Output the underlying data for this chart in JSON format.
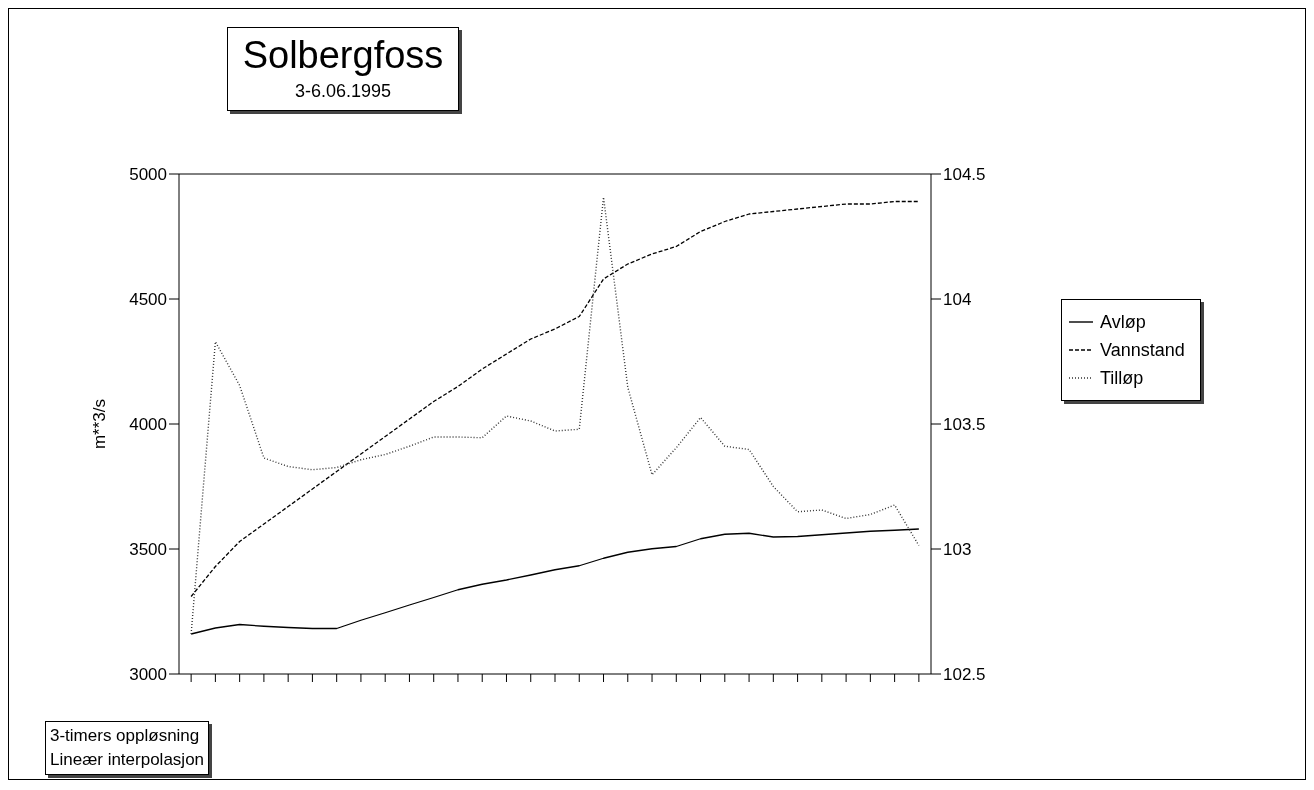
{
  "chart_data": {
    "type": "line",
    "title": "Solbergfoss",
    "subtitle": "3-6.06.1995",
    "ylabel": "m**3/s",
    "categories": [
      null,
      null,
      null,
      null,
      null,
      null,
      null,
      null,
      null,
      null,
      null,
      null,
      null,
      null,
      null,
      null,
      null,
      null,
      null,
      null,
      null,
      null,
      null,
      null,
      null,
      null,
      null,
      null,
      null,
      null,
      null
    ],
    "series": [
      {
        "name": "Avløp",
        "color": "#000000",
        "line_style": "solid",
        "values": [
          3160,
          3184,
          3198,
          3191,
          3186,
          3182,
          3182,
          3215,
          3245,
          3276,
          3306,
          3337,
          3359,
          3376,
          3396,
          3417,
          3433,
          3463,
          3487,
          3501,
          3510,
          3541,
          3559,
          3563,
          3548,
          3550,
          3557,
          3564,
          3571,
          3575,
          3580
        ]
      },
      {
        "name": "Vannstand",
        "color": "#000000",
        "line_style": "dashed",
        "axis": "y2",
        "values": [
          102.81,
          102.93,
          103.03,
          103.1,
          103.17,
          103.24,
          103.31,
          103.38,
          103.45,
          103.52,
          103.59,
          103.65,
          103.72,
          103.78,
          103.84,
          103.88,
          103.93,
          104.08,
          104.14,
          104.18,
          104.21,
          104.27,
          104.31,
          104.34,
          104.35,
          104.36,
          104.37,
          104.38,
          104.38,
          104.39,
          104.39
        ]
      },
      {
        "name": "Tilløp",
        "color": "#333333",
        "line_style": "dotted",
        "values": [
          3160,
          4329,
          4154,
          3864,
          3830,
          3817,
          3826,
          3857,
          3878,
          3911,
          3948,
          3948,
          3945,
          4032,
          4012,
          3972,
          3979,
          4907,
          4147,
          3797,
          3905,
          4026,
          3911,
          3898,
          3750,
          3649,
          3656,
          3622,
          3638,
          3676,
          3514
        ]
      }
    ],
    "ylim": [
      3000,
      5000
    ],
    "yticks": [
      3000,
      3500,
      4000,
      4500,
      5000
    ],
    "y2lim": [
      102.5,
      104.5
    ],
    "y2ticks": [
      102.5,
      103,
      103.5,
      104,
      104.5
    ],
    "grid": false,
    "legend": "right",
    "marker": "none",
    "annotations": [
      "3-timers oppløsning",
      "Lineær interpolasjon"
    ]
  }
}
